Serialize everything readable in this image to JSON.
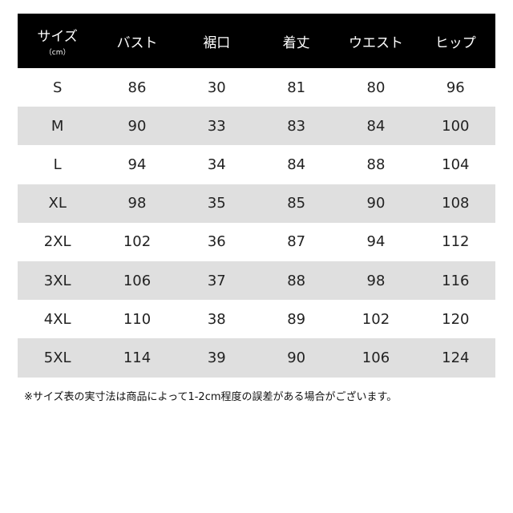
{
  "table": {
    "headers": [
      "サイズ",
      "バスト",
      "裾口",
      "着丈",
      "ウエスト",
      "ヒップ"
    ],
    "header_unit": "（cm）",
    "rows": [
      [
        "S",
        "86",
        "30",
        "81",
        "80",
        "96"
      ],
      [
        "M",
        "90",
        "33",
        "83",
        "84",
        "100"
      ],
      [
        "L",
        "94",
        "34",
        "84",
        "88",
        "104"
      ],
      [
        "XL",
        "98",
        "35",
        "85",
        "90",
        "108"
      ],
      [
        "2XL",
        "102",
        "36",
        "87",
        "94",
        "112"
      ],
      [
        "3XL",
        "106",
        "37",
        "88",
        "98",
        "116"
      ],
      [
        "4XL",
        "110",
        "38",
        "89",
        "102",
        "120"
      ],
      [
        "5XL",
        "114",
        "39",
        "90",
        "106",
        "124"
      ]
    ]
  },
  "note": "※サイズ表の実寸法は商品によって1-2cm程度の誤差がある場合がございます。",
  "colors": {
    "header_bg": "#000000",
    "stripe": "#dfdfdf"
  }
}
